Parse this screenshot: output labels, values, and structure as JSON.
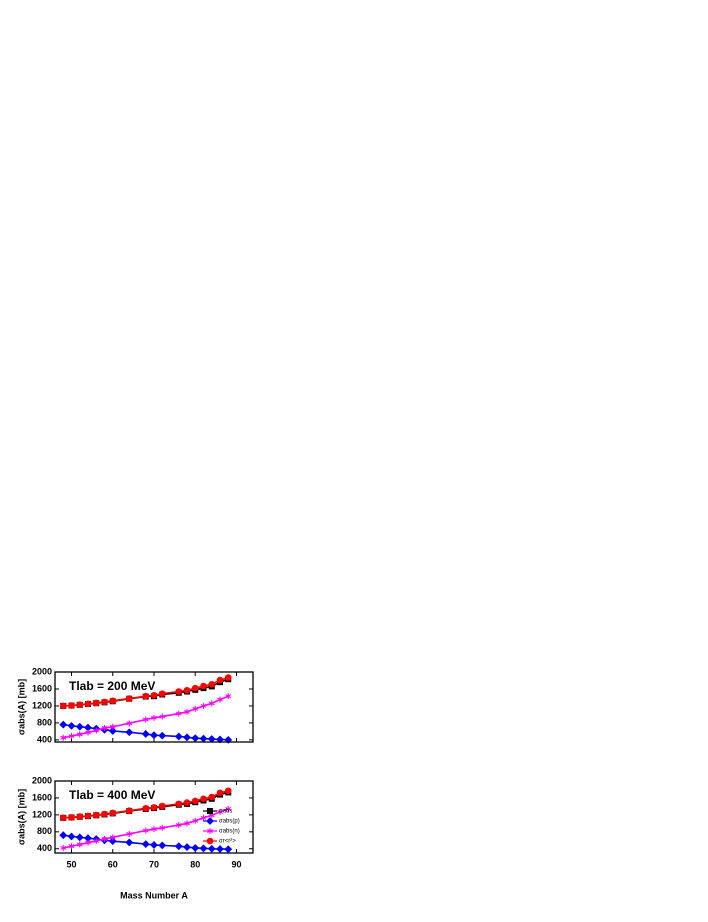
{
  "chart_data": [
    {
      "type": "line",
      "annotation": "Tlab = 200 MeV",
      "y_label": "σabs(A)  [mb]",
      "x": [
        48,
        50,
        52,
        54,
        56,
        58,
        60,
        64,
        68,
        70,
        72,
        76,
        78,
        80,
        82,
        84,
        86,
        88
      ],
      "xlim": [
        46,
        94
      ],
      "xticks": [
        50,
        60,
        70,
        80,
        90
      ],
      "ylim": [
        350,
        2000
      ],
      "yticks": [
        400,
        800,
        1200,
        1600,
        2000
      ],
      "series": [
        {
          "color": "#000000",
          "marker": "square",
          "values": [
            1200,
            1210,
            1225,
            1245,
            1265,
            1285,
            1310,
            1370,
            1420,
            1430,
            1470,
            1510,
            1540,
            1580,
            1620,
            1660,
            1760,
            1830
          ]
        },
        {
          "color": "#0000ff",
          "marker": "diamond",
          "values": [
            760,
            730,
            710,
            690,
            665,
            640,
            610,
            580,
            540,
            510,
            500,
            480,
            460,
            440,
            430,
            420,
            410,
            400
          ]
        },
        {
          "color": "#ff00ff",
          "marker": "star",
          "values": [
            450,
            490,
            530,
            575,
            620,
            680,
            710,
            790,
            880,
            920,
            950,
            1020,
            1060,
            1130,
            1200,
            1260,
            1350,
            1430
          ]
        },
        {
          "color": "#ff0000",
          "marker": "circle",
          "values": [
            1200,
            1210,
            1230,
            1250,
            1270,
            1295,
            1320,
            1375,
            1430,
            1450,
            1490,
            1540,
            1570,
            1620,
            1670,
            1710,
            1810,
            1870
          ]
        }
      ]
    },
    {
      "type": "line",
      "annotation": "Tlab = 400 MeV",
      "y_label": "σabs(A)  [mb]",
      "x_label": "Mass Number A",
      "x": [
        48,
        50,
        52,
        54,
        56,
        58,
        60,
        64,
        68,
        70,
        72,
        76,
        78,
        80,
        82,
        84,
        86,
        88
      ],
      "xlim": [
        46,
        94
      ],
      "xticks": [
        50,
        60,
        70,
        80,
        90
      ],
      "ylim": [
        300,
        2000
      ],
      "yticks": [
        400,
        800,
        1200,
        1600,
        2000
      ],
      "legend": "right",
      "series": [
        {
          "name": "σabs",
          "color": "#000000",
          "marker": "square",
          "values": [
            1130,
            1140,
            1155,
            1170,
            1190,
            1210,
            1235,
            1290,
            1340,
            1360,
            1390,
            1440,
            1460,
            1500,
            1540,
            1580,
            1680,
            1730
          ]
        },
        {
          "name": "σabs(p)",
          "color": "#0000ff",
          "marker": "diamond",
          "values": [
            720,
            690,
            670,
            650,
            630,
            600,
            580,
            550,
            510,
            490,
            480,
            460,
            440,
            420,
            410,
            400,
            395,
            390
          ]
        },
        {
          "name": "σabs(n)",
          "color": "#ff00ff",
          "marker": "star",
          "values": [
            420,
            460,
            500,
            545,
            585,
            630,
            670,
            750,
            830,
            865,
            895,
            960,
            1000,
            1060,
            1130,
            1190,
            1270,
            1340
          ]
        },
        {
          "name": "σr<r²>",
          "color": "#ff0000",
          "marker": "circle",
          "values": [
            1130,
            1140,
            1160,
            1175,
            1195,
            1220,
            1245,
            1300,
            1355,
            1375,
            1410,
            1460,
            1490,
            1530,
            1580,
            1620,
            1720,
            1770
          ]
        }
      ]
    }
  ]
}
